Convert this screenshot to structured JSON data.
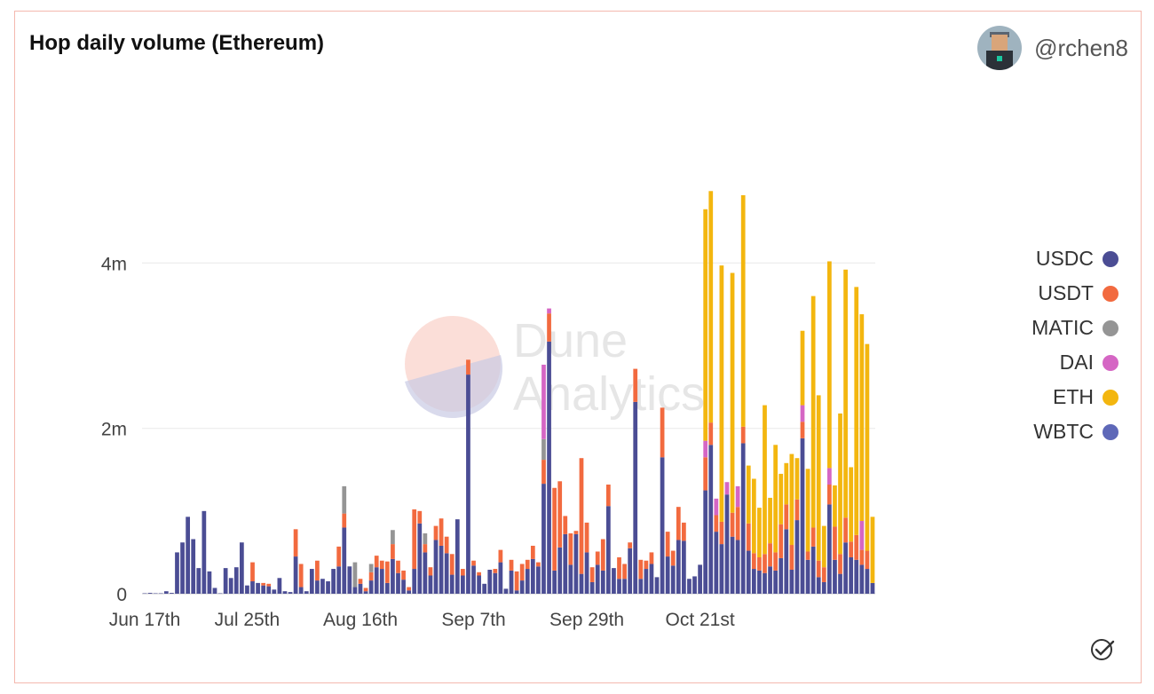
{
  "header": {
    "title": "Hop daily volume (Ethereum)",
    "author": "@rchen8"
  },
  "watermark": {
    "line1": "Dune",
    "line2": "Analytics"
  },
  "chart_data": {
    "type": "bar",
    "stacked": true,
    "title": "Hop daily volume (Ethereum)",
    "xlabel": "",
    "ylabel": "",
    "ylim": [
      0,
      6000000
    ],
    "yticks": [
      0,
      2000000,
      4000000
    ],
    "ytick_labels": [
      "0",
      "2m",
      "4m"
    ],
    "xtick_labels": [
      "Jun 17th",
      "Jul 25th",
      "Aug 16th",
      "Sep 7th",
      "Sep 29th",
      "Oct 21st"
    ],
    "xtick_index": [
      0,
      19,
      40,
      61,
      82,
      103
    ],
    "grid": true,
    "legend": "right",
    "colors": {
      "USDC": "#4b4d94",
      "USDT": "#f26a3f",
      "MATIC": "#959595",
      "DAI": "#d566c4",
      "ETH": "#f3b60f",
      "WBTC": "#5e68b8"
    },
    "stack_order": [
      "USDC",
      "USDT",
      "MATIC",
      "DAI",
      "ETH"
    ],
    "series": [
      {
        "name": "USDC",
        "values": [
          5000,
          10000,
          5000,
          5000,
          30000,
          10000,
          500000,
          620000,
          930000,
          660000,
          310000,
          1000000,
          270000,
          70000,
          5000,
          310000,
          190000,
          320000,
          620000,
          100000,
          150000,
          130000,
          100000,
          90000,
          50000,
          190000,
          30000,
          20000,
          450000,
          80000,
          30000,
          300000,
          160000,
          180000,
          150000,
          300000,
          330000,
          800000,
          330000,
          80000,
          120000,
          30000,
          160000,
          320000,
          300000,
          130000,
          420000,
          250000,
          170000,
          40000,
          300000,
          850000,
          500000,
          220000,
          650000,
          580000,
          490000,
          230000,
          900000,
          220000,
          2650000,
          340000,
          220000,
          120000,
          290000,
          250000,
          380000,
          60000,
          280000,
          40000,
          160000,
          300000,
          420000,
          330000,
          1330000,
          3050000,
          280000,
          560000,
          720000,
          350000,
          720000,
          240000,
          500000,
          140000,
          350000,
          280000,
          1060000,
          310000,
          180000,
          180000,
          550000,
          2320000,
          180000,
          300000,
          360000,
          200000,
          1650000,
          450000,
          340000,
          650000,
          640000,
          180000,
          210000,
          350000,
          1250000,
          1800000,
          750000,
          600000,
          1200000,
          690000,
          650000,
          1820000,
          520000,
          300000,
          280000,
          250000,
          330000,
          280000,
          430000,
          780000,
          290000,
          890000,
          1880000,
          410000,
          570000,
          200000,
          140000,
          1080000,
          410000,
          240000,
          620000,
          440000,
          410000,
          350000,
          300000,
          130000
        ]
      },
      {
        "name": "USDT",
        "values": [
          0,
          0,
          0,
          0,
          0,
          0,
          0,
          0,
          0,
          0,
          0,
          0,
          0,
          0,
          0,
          0,
          0,
          0,
          0,
          0,
          230000,
          0,
          30000,
          30000,
          0,
          0,
          0,
          0,
          330000,
          280000,
          0,
          0,
          240000,
          0,
          0,
          0,
          240000,
          170000,
          0,
          0,
          60000,
          40000,
          100000,
          140000,
          100000,
          260000,
          180000,
          150000,
          110000,
          40000,
          720000,
          150000,
          100000,
          100000,
          170000,
          330000,
          200000,
          250000,
          0,
          80000,
          180000,
          60000,
          40000,
          0,
          0,
          50000,
          150000,
          0,
          130000,
          230000,
          200000,
          110000,
          160000,
          50000,
          290000,
          340000,
          1000000,
          800000,
          220000,
          380000,
          40000,
          1400000,
          360000,
          180000,
          160000,
          380000,
          260000,
          0,
          260000,
          180000,
          70000,
          400000,
          230000,
          100000,
          140000,
          0,
          600000,
          300000,
          180000,
          400000,
          220000,
          0,
          0,
          0,
          400000,
          270000,
          200000,
          270000,
          0,
          290000,
          400000,
          200000,
          330000,
          190000,
          160000,
          230000,
          280000,
          220000,
          410000,
          300000,
          300000,
          250000,
          200000,
          100000,
          230000,
          200000,
          180000,
          240000,
          400000,
          240000,
          300000,
          190000,
          300000,
          180000,
          220000,
          0
        ]
      },
      {
        "name": "MATIC",
        "values": [
          0,
          0,
          0,
          0,
          0,
          0,
          0,
          0,
          0,
          0,
          0,
          0,
          0,
          0,
          0,
          0,
          0,
          0,
          0,
          0,
          0,
          0,
          0,
          0,
          0,
          0,
          0,
          0,
          0,
          0,
          0,
          0,
          0,
          0,
          0,
          0,
          0,
          330000,
          0,
          300000,
          0,
          0,
          100000,
          0,
          0,
          0,
          170000,
          0,
          0,
          0,
          0,
          0,
          130000,
          0,
          0,
          0,
          0,
          0,
          0,
          0,
          0,
          0,
          0,
          0,
          0,
          0,
          0,
          0,
          0,
          0,
          0,
          0,
          0,
          0,
          250000,
          0,
          0,
          0,
          0,
          0,
          0,
          0,
          0,
          0,
          0,
          0,
          0,
          0,
          0,
          0,
          0,
          0,
          0,
          0,
          0,
          0,
          0,
          0,
          0,
          0,
          0,
          0,
          0,
          0,
          0,
          0,
          0,
          0,
          0,
          0,
          0,
          0,
          0,
          0,
          0,
          0,
          0,
          0,
          0,
          0,
          0,
          0,
          0,
          0,
          0,
          0,
          0,
          0,
          0,
          0,
          0,
          0,
          0,
          0
        ]
      },
      {
        "name": "DAI",
        "values": [
          0,
          0,
          0,
          0,
          0,
          0,
          0,
          0,
          0,
          0,
          0,
          0,
          0,
          0,
          0,
          0,
          0,
          0,
          0,
          0,
          0,
          0,
          0,
          0,
          0,
          0,
          0,
          0,
          0,
          0,
          0,
          0,
          0,
          0,
          0,
          0,
          0,
          0,
          0,
          0,
          0,
          0,
          0,
          0,
          0,
          0,
          0,
          0,
          0,
          0,
          0,
          0,
          0,
          0,
          0,
          0,
          0,
          0,
          0,
          0,
          0,
          0,
          0,
          0,
          0,
          0,
          0,
          0,
          0,
          0,
          0,
          0,
          0,
          0,
          900000,
          60000,
          0,
          0,
          0,
          0,
          0,
          0,
          0,
          0,
          0,
          0,
          0,
          0,
          0,
          0,
          0,
          0,
          0,
          0,
          0,
          0,
          0,
          0,
          0,
          0,
          0,
          0,
          0,
          0,
          200000,
          0,
          200000,
          0,
          150000,
          0,
          250000,
          0,
          0,
          0,
          0,
          0,
          0,
          0,
          0,
          0,
          0,
          0,
          200000,
          0,
          0,
          0,
          0,
          200000,
          0,
          0,
          0,
          0,
          0,
          350000,
          0,
          0
        ]
      },
      {
        "name": "ETH",
        "values": [
          0,
          0,
          0,
          0,
          0,
          0,
          0,
          0,
          0,
          0,
          0,
          0,
          0,
          0,
          0,
          0,
          0,
          0,
          0,
          0,
          0,
          0,
          0,
          0,
          0,
          0,
          0,
          0,
          0,
          0,
          0,
          0,
          0,
          0,
          0,
          0,
          0,
          0,
          0,
          0,
          0,
          0,
          0,
          0,
          0,
          0,
          0,
          0,
          0,
          0,
          0,
          0,
          0,
          0,
          0,
          0,
          0,
          0,
          0,
          0,
          0,
          0,
          0,
          0,
          0,
          0,
          0,
          0,
          0,
          0,
          0,
          0,
          0,
          0,
          0,
          0,
          0,
          0,
          0,
          0,
          0,
          0,
          0,
          0,
          0,
          0,
          0,
          0,
          0,
          0,
          0,
          0,
          0,
          0,
          0,
          0,
          0,
          0,
          0,
          0,
          0,
          0,
          0,
          0,
          2800000,
          2800000,
          0,
          3100000,
          0,
          2900000,
          0,
          2800000,
          700000,
          900000,
          600000,
          1800000,
          550000,
          1300000,
          610000,
          500000,
          1100000,
          500000,
          900000,
          1000000,
          2800000,
          2000000,
          500000,
          2500000,
          500000,
          1700000,
          3000000,
          900000,
          3000000,
          2500000,
          2500000,
          800000
        ]
      }
    ]
  }
}
